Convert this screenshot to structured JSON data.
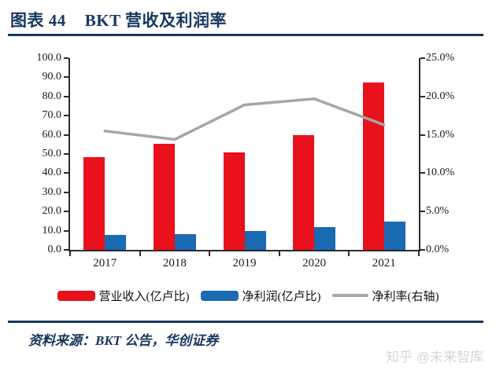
{
  "header": {
    "caption_label": "图表 44",
    "caption_title": "BKT 营收及利润率"
  },
  "chart_data": {
    "type": "bar",
    "subtype": "bar+line-dual-axis",
    "categories": [
      "2017",
      "2018",
      "2019",
      "2020",
      "2021"
    ],
    "series": [
      {
        "name": "营业收入(亿卢比)",
        "type": "bar",
        "axis": "left",
        "color": "#e8111c",
        "values": [
          48.5,
          55.2,
          50.8,
          59.8,
          87.5
        ]
      },
      {
        "name": "净利润(亿卢比)",
        "type": "bar",
        "axis": "left",
        "color": "#1a6ab4",
        "values": [
          7.8,
          8.2,
          9.9,
          12.0,
          14.6
        ]
      },
      {
        "name": "净利率(右轴)",
        "type": "line",
        "axis": "right",
        "color": "#a6a6a6",
        "values": [
          15.5,
          14.4,
          18.9,
          19.7,
          16.3
        ]
      }
    ],
    "left_axis": {
      "min": 0,
      "max": 100,
      "step": 10,
      "tick_labels": [
        "0.0",
        "10.0",
        "20.0",
        "30.0",
        "40.0",
        "50.0",
        "60.0",
        "70.0",
        "80.0",
        "90.0",
        "100.0"
      ]
    },
    "right_axis": {
      "min": 0,
      "max": 25,
      "step": 5,
      "tick_labels": [
        "0.0%",
        "5.0%",
        "10.0%",
        "15.0%",
        "20.0%",
        "25.0%"
      ]
    },
    "grid": false,
    "legend_position": "bottom"
  },
  "footer": {
    "source_text": "资料来源：BKT 公告，华创证券"
  },
  "watermark": "知乎 @未来智库",
  "colors": {
    "accent_navy": "#17375e",
    "revenue_red": "#e8111c",
    "profit_blue": "#1a6ab4",
    "margin_gray": "#a6a6a6"
  }
}
